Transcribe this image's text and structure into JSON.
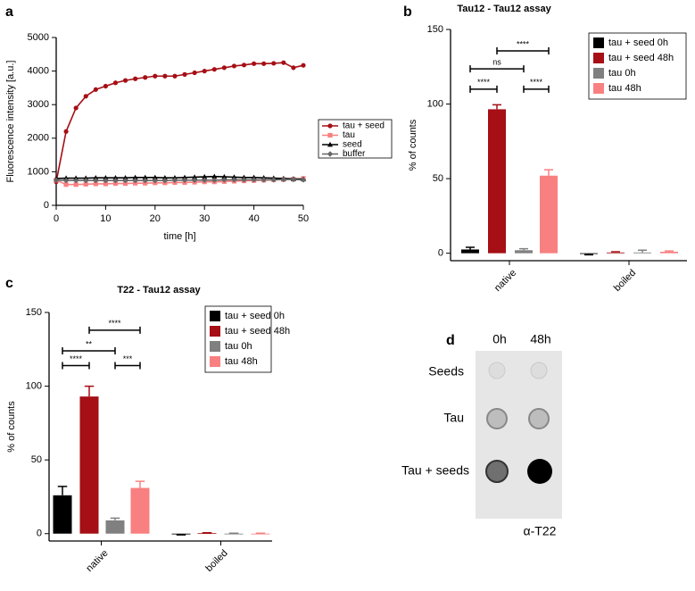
{
  "panel_labels": [
    "a",
    "b",
    "c",
    "d"
  ],
  "chart_data": [
    {
      "type": "line",
      "xlabel": "time [h]",
      "ylabel": "Fluorescence intensity [a.u.]",
      "x": [
        0,
        2,
        4,
        6,
        8,
        10,
        12,
        14,
        16,
        18,
        20,
        22,
        24,
        26,
        28,
        30,
        32,
        34,
        36,
        38,
        40,
        42,
        44,
        46,
        48,
        50
      ],
      "xlim": [
        0,
        50
      ],
      "xticks": [
        0,
        10,
        20,
        30,
        40,
        50
      ],
      "ylim": [
        0,
        5000
      ],
      "yticks": [
        0,
        1000,
        2000,
        3000,
        4000,
        5000
      ],
      "series": [
        {
          "name": "tau + seed",
          "color": "#a50f15",
          "marker": "circle",
          "values": [
            700,
            2200,
            2900,
            3250,
            3450,
            3550,
            3650,
            3720,
            3770,
            3810,
            3850,
            3850,
            3850,
            3900,
            3950,
            4000,
            4050,
            4100,
            4150,
            4180,
            4220,
            4220,
            4230,
            4250,
            4100,
            4170
          ]
        },
        {
          "name": "tau",
          "color": "#f88080",
          "marker": "square",
          "values": [
            750,
            620,
            620,
            630,
            640,
            640,
            650,
            650,
            660,
            660,
            670,
            670,
            680,
            680,
            690,
            700,
            700,
            710,
            720,
            730,
            740,
            750,
            760,
            770,
            780,
            800
          ]
        },
        {
          "name": "seed",
          "color": "#000000",
          "marker": "triangle",
          "values": [
            800,
            810,
            810,
            810,
            820,
            820,
            820,
            820,
            830,
            830,
            830,
            820,
            820,
            830,
            840,
            850,
            860,
            850,
            840,
            830,
            830,
            820,
            810,
            800,
            790,
            780
          ]
        },
        {
          "name": "buffer",
          "color": "#666666",
          "marker": "diamond",
          "values": [
            750,
            740,
            740,
            740,
            740,
            740,
            740,
            740,
            740,
            740,
            740,
            740,
            750,
            750,
            750,
            750,
            750,
            760,
            760,
            760,
            760,
            760,
            760,
            770,
            770,
            760
          ]
        }
      ]
    },
    {
      "type": "bar",
      "title": "Tau12 - Tau12 assay",
      "ylabel": "% of counts",
      "categories": [
        "native",
        "boiled"
      ],
      "ylim": [
        -5,
        150
      ],
      "yticks": [
        0,
        50,
        100,
        150
      ],
      "series": [
        {
          "name": "tau + seed 0h",
          "color": "#000000",
          "values": [
            2.5,
            -0.5
          ],
          "errors": [
            1.5,
            0.5
          ]
        },
        {
          "name": "tau + seed 48h",
          "color": "#a50f15",
          "values": [
            96.5,
            0.5
          ],
          "errors": [
            3,
            0.5
          ]
        },
        {
          "name": "tau 0h",
          "color": "#808080",
          "values": [
            2,
            0.5
          ],
          "errors": [
            1,
            1.5
          ]
        },
        {
          "name": "tau 48h",
          "color": "#f88080",
          "values": [
            52,
            1
          ],
          "errors": [
            4,
            0.5
          ]
        }
      ],
      "annotations": [
        "****",
        "ns",
        "****",
        "****"
      ]
    },
    {
      "type": "bar",
      "title": "T22 - Tau12 assay",
      "ylabel": "% of counts",
      "categories": [
        "native",
        "boiled"
      ],
      "ylim": [
        -5,
        150
      ],
      "yticks": [
        0,
        50,
        100,
        150
      ],
      "series": [
        {
          "name": "tau + seed 0h",
          "color": "#000000",
          "values": [
            26,
            -0.5
          ],
          "errors": [
            6,
            0.3
          ]
        },
        {
          "name": "tau + seed 48h",
          "color": "#a50f15",
          "values": [
            93,
            0.3
          ],
          "errors": [
            7,
            0.3
          ]
        },
        {
          "name": "tau 0h",
          "color": "#808080",
          "values": [
            9,
            0
          ],
          "errors": [
            1.5,
            0.3
          ]
        },
        {
          "name": "tau 48h",
          "color": "#f88080",
          "values": [
            31,
            0
          ],
          "errors": [
            4.5,
            0.3
          ]
        }
      ],
      "annotations": [
        "****",
        "**",
        "****",
        "***"
      ]
    }
  ],
  "blot": {
    "columns": [
      "0h",
      "48h"
    ],
    "rows": [
      "Seeds",
      "Tau",
      "Tau + seeds"
    ],
    "caption": "α-T22"
  }
}
